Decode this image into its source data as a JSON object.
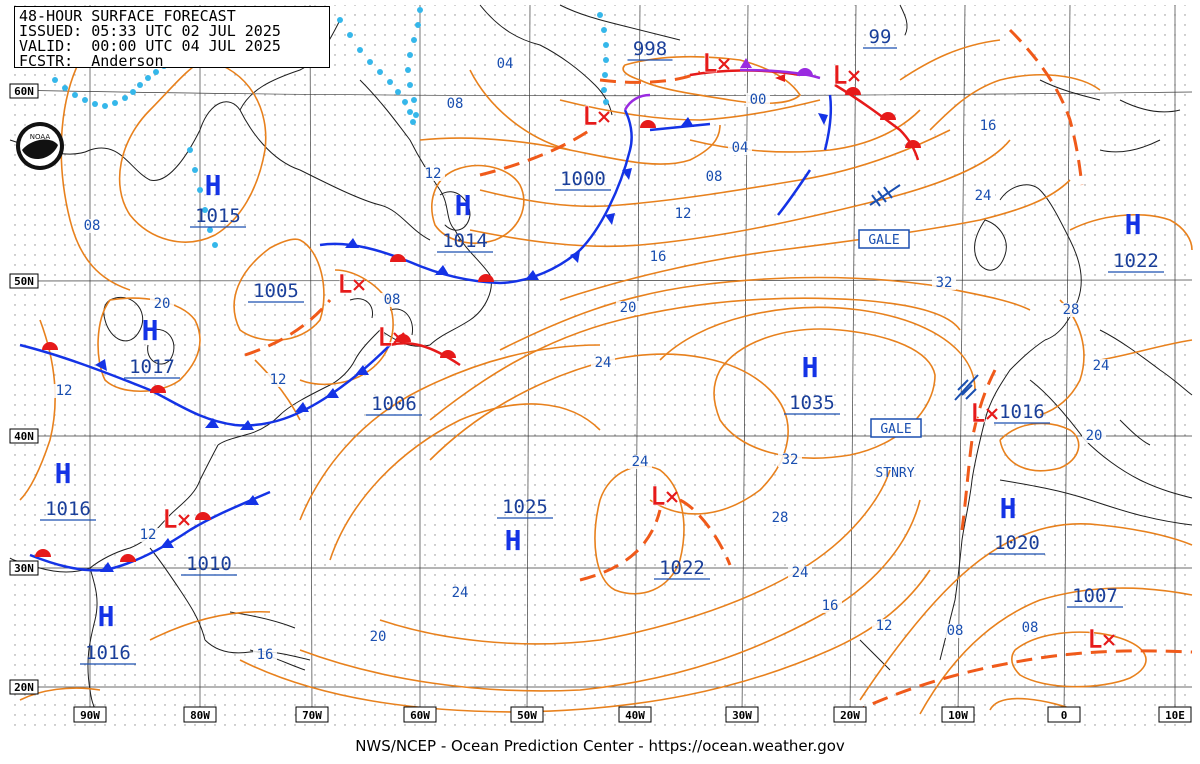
{
  "header": {
    "title": "48-HOUR SURFACE FORECAST",
    "issued": "ISSUED: 05:33 UTC 02 JUL 2025",
    "valid": "VALID:  00:00 UTC 04 JUL 2025",
    "forecaster": "FCSTR:  Anderson"
  },
  "footer": "NWS/NCEP - Ocean Prediction Center - https://ocean.weather.gov",
  "logo": {
    "name": "noaa-logo",
    "text": "NOAA"
  },
  "lat_labels": [
    "60N",
    "50N",
    "40N",
    "30N",
    "20N"
  ],
  "lon_labels": [
    "90W",
    "80W",
    "70W",
    "60W",
    "50W",
    "40W",
    "30W",
    "20W",
    "10W",
    "0",
    "10E"
  ],
  "pressure_centers": [
    {
      "type": "H",
      "value": "1015"
    },
    {
      "type": "H",
      "value": "1014"
    },
    {
      "type": "H",
      "value": "1017"
    },
    {
      "type": "H",
      "value": "1035"
    },
    {
      "type": "H",
      "value": "1025"
    },
    {
      "type": "H",
      "value": "1016"
    },
    {
      "type": "H",
      "value": "1016"
    },
    {
      "type": "H",
      "value": "1020"
    },
    {
      "type": "H",
      "value": "1022"
    },
    {
      "type": "L",
      "value": "1000"
    },
    {
      "type": "L",
      "value": "998"
    },
    {
      "type": "L",
      "value": "99"
    },
    {
      "type": "L",
      "value": "1005"
    },
    {
      "type": "L",
      "value": "1006"
    },
    {
      "type": "L",
      "value": "1010"
    },
    {
      "type": "L",
      "value": "1022"
    },
    {
      "type": "L",
      "value": "1016"
    },
    {
      "type": "L",
      "value": "1007"
    }
  ],
  "isobar_labels": [
    "04",
    "08",
    "08",
    "12",
    "00",
    "04",
    "08",
    "12",
    "16",
    "20",
    "24",
    "24",
    "28",
    "32",
    "32",
    "28",
    "24",
    "24",
    "20",
    "24",
    "20",
    "16",
    "12",
    "08",
    "12",
    "16",
    "12",
    "08",
    "16",
    "24",
    "12",
    "08",
    "20"
  ],
  "warnings": [
    "GALE",
    "GALE"
  ],
  "front_labels": [
    "STNRY"
  ],
  "colors": {
    "isobar": "#e8811d",
    "cold_front": "#1433e6",
    "warm_front": "#e61a1a",
    "occluded_front": "#9a2be0",
    "trough": "#f05a1a",
    "high": "#1433e6",
    "low": "#e61a1a",
    "coast": "#222222",
    "ice": "#35b7ea",
    "grid": "#333333",
    "label_blue": "#1a4fb0"
  }
}
